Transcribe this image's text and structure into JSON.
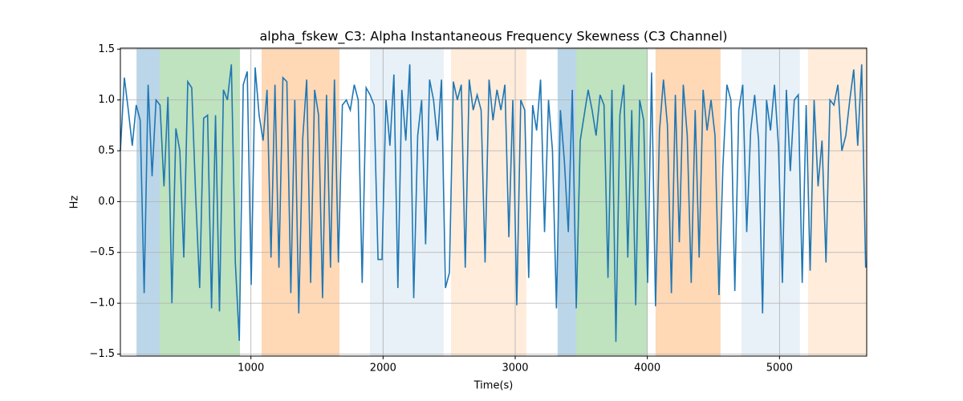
{
  "chart_data": {
    "type": "line",
    "title": "alpha_fskew_C3: Alpha Instantaneous Frequency Skewness (C3 Channel)",
    "xlabel": "Time(s)",
    "ylabel": "Hz",
    "xlim": [
      12,
      5660
    ],
    "ylim": [
      -1.52,
      1.51
    ],
    "xticks": [
      1000,
      2000,
      3000,
      4000,
      5000
    ],
    "yticks": [
      {
        "value": -1.5,
        "label": "−1.5"
      },
      {
        "value": -1.0,
        "label": "−1.0"
      },
      {
        "value": -0.5,
        "label": "−0.5"
      },
      {
        "value": 0.0,
        "label": "0.0"
      },
      0.5,
      {
        "value": 1.0,
        "label": "1.0"
      },
      {
        "value": 1.5,
        "label": "1.5"
      }
    ],
    "grid": true,
    "shaded_regions": [
      {
        "start": 134,
        "end": 310,
        "color": "rgba(31,119,180,0.3)"
      },
      {
        "start": 310,
        "end": 917,
        "color": "rgba(44,160,44,0.3)"
      },
      {
        "start": 1081,
        "end": 1670,
        "color": "rgba(255,127,14,0.3)"
      },
      {
        "start": 1900,
        "end": 2459,
        "color": "rgba(31,119,180,0.1)"
      },
      {
        "start": 2514,
        "end": 3084,
        "color": "rgba(255,127,14,0.15)"
      },
      {
        "start": 3321,
        "end": 3461,
        "color": "rgba(31,119,180,0.3)"
      },
      {
        "start": 3461,
        "end": 4001,
        "color": "rgba(44,160,44,0.3)"
      },
      {
        "start": 4062,
        "end": 4554,
        "color": "rgba(255,127,14,0.3)"
      },
      {
        "start": 4712,
        "end": 5155,
        "color": "rgba(31,119,180,0.1)"
      },
      {
        "start": 5216,
        "end": 5660,
        "color": "rgba(255,127,14,0.15)"
      }
    ],
    "series": [
      {
        "color": "#1f77b4",
        "x": [
          12,
          42,
          72,
          102,
          132,
          162,
          192,
          222,
          252,
          282,
          312,
          342,
          372,
          402,
          432,
          462,
          492,
          522,
          552,
          582,
          612,
          642,
          672,
          702,
          732,
          762,
          792,
          822,
          852,
          882,
          912,
          942,
          972,
          1002,
          1032,
          1062,
          1092,
          1122,
          1152,
          1182,
          1212,
          1242,
          1272,
          1302,
          1332,
          1362,
          1392,
          1422,
          1452,
          1482,
          1512,
          1542,
          1572,
          1602,
          1632,
          1662,
          1692,
          1722,
          1752,
          1782,
          1812,
          1842,
          1872,
          1902,
          1932,
          1962,
          1992,
          2022,
          2052,
          2082,
          2112,
          2142,
          2172,
          2202,
          2232,
          2262,
          2292,
          2322,
          2352,
          2382,
          2412,
          2442,
          2472,
          2502,
          2532,
          2562,
          2592,
          2622,
          2652,
          2682,
          2712,
          2742,
          2772,
          2802,
          2832,
          2862,
          2892,
          2922,
          2952,
          2982,
          3012,
          3042,
          3072,
          3102,
          3132,
          3162,
          3192,
          3222,
          3252,
          3282,
          3312,
          3342,
          3372,
          3402,
          3432,
          3462,
          3492,
          3522,
          3552,
          3582,
          3612,
          3642,
          3672,
          3702,
          3732,
          3762,
          3792,
          3822,
          3852,
          3882,
          3912,
          3942,
          3972,
          4002,
          4032,
          4062,
          4092,
          4122,
          4152,
          4182,
          4212,
          4242,
          4272,
          4302,
          4332,
          4362,
          4392,
          4422,
          4452,
          4482,
          4512,
          4542,
          4572,
          4602,
          4632,
          4662,
          4692,
          4722,
          4752,
          4782,
          4812,
          4842,
          4872,
          4902,
          4932,
          4962,
          4992,
          5022,
          5052,
          5082,
          5112,
          5142,
          5172,
          5202,
          5232,
          5262,
          5292,
          5322,
          5352,
          5382,
          5412,
          5442,
          5472,
          5502,
          5532,
          5562,
          5592,
          5622,
          5652
        ],
        "values": [
          0.5,
          1.22,
          0.9,
          0.55,
          0.95,
          0.8,
          -0.9,
          1.15,
          0.25,
          1.0,
          0.95,
          0.15,
          1.03,
          -1.0,
          0.72,
          0.5,
          -0.55,
          1.18,
          1.12,
          0.05,
          -0.85,
          0.82,
          0.85,
          -1.05,
          0.85,
          -1.08,
          1.1,
          1.0,
          1.35,
          -0.6,
          -1.37,
          1.15,
          1.28,
          -0.82,
          1.32,
          0.85,
          0.6,
          1.1,
          -0.55,
          1.15,
          -0.65,
          1.22,
          1.18,
          -0.9,
          1.0,
          -1.1,
          0.62,
          1.2,
          -0.8,
          1.1,
          0.85,
          -0.95,
          1.05,
          -0.65,
          1.2,
          -0.6,
          0.95,
          1.0,
          0.9,
          1.15,
          1.0,
          -0.8,
          1.12,
          1.05,
          0.95,
          -0.57,
          -0.57,
          1.0,
          0.55,
          1.25,
          -0.85,
          1.1,
          0.6,
          1.35,
          -0.95,
          0.65,
          1.0,
          -0.42,
          1.2,
          1.0,
          0.6,
          1.2,
          -0.85,
          -0.7,
          1.18,
          1.0,
          1.15,
          -0.65,
          1.2,
          0.9,
          1.05,
          0.9,
          -0.6,
          1.2,
          0.8,
          1.1,
          0.9,
          1.15,
          -0.35,
          1.0,
          -1.02,
          1.0,
          0.9,
          -0.75,
          0.95,
          0.7,
          1.2,
          -0.3,
          1.0,
          0.5,
          -1.05,
          0.9,
          0.4,
          -0.3,
          1.1,
          -1.05,
          0.6,
          0.85,
          1.1,
          0.9,
          0.65,
          1.05,
          0.95,
          -0.75,
          1.1,
          -1.38,
          0.85,
          1.15,
          -0.55,
          0.9,
          -1.02,
          1.0,
          0.8,
          -0.8,
          1.27,
          -1.03,
          0.7,
          1.2,
          0.75,
          -0.9,
          1.05,
          -0.4,
          1.15,
          0.65,
          -0.8,
          0.9,
          -0.55,
          1.1,
          0.7,
          1.0,
          0.65,
          -0.92,
          0.35,
          1.15,
          1.0,
          -0.88,
          0.9,
          1.15,
          -0.3,
          0.7,
          1.05,
          0.6,
          -1.1,
          1.0,
          0.7,
          1.15,
          0.55,
          -0.8,
          1.1,
          0.3,
          1.0,
          1.05,
          -0.8,
          0.95,
          -0.68,
          1.0,
          0.15,
          0.6,
          -0.6,
          1.0,
          0.95,
          1.15,
          0.5,
          0.65,
          1.0,
          1.3,
          0.55,
          1.35,
          -0.65
        ]
      }
    ]
  }
}
